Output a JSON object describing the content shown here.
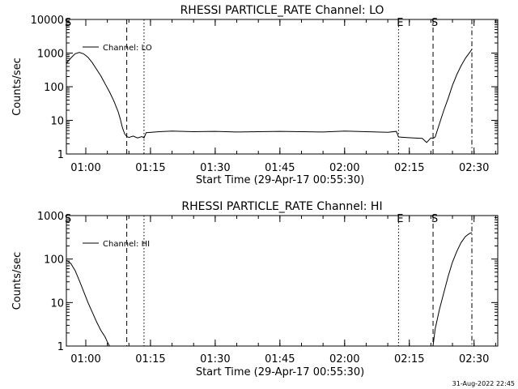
{
  "timestamp": "31-Aug-2022 22:45",
  "chart_data": [
    {
      "type": "line",
      "title": "RHESSI PARTICLE_RATE Channel: LO",
      "xlabel": "Start Time (29-Apr-17 00:55:30)",
      "ylabel": "Counts/sec",
      "yscale": "log",
      "ylim": [
        1,
        10000
      ],
      "y_ticks": [
        1,
        10,
        100,
        1000,
        10000
      ],
      "y_tick_labels": [
        "1",
        "10",
        "100",
        "1000",
        "10000"
      ],
      "xlim": [
        "00:55:30",
        "02:35:30"
      ],
      "x_ticks": [
        "01:00",
        "01:15",
        "01:30",
        "01:45",
        "02:00",
        "02:15",
        "02:30"
      ],
      "x_tick_labels": [
        "01:00",
        "01:15",
        "01:30",
        "01:45",
        "02:00",
        "02:15",
        "02:30"
      ],
      "legend": {
        "label": "Channel: LO",
        "placement": "top-left"
      },
      "markers": [
        {
          "time": "00:55:30",
          "label": "S",
          "style": "dashed"
        },
        {
          "time": "01:09:30",
          "label": "",
          "style": "dashed"
        },
        {
          "time": "01:13:30",
          "label": "",
          "style": "dotted"
        },
        {
          "time": "02:12:30",
          "label": "E",
          "style": "dotted"
        },
        {
          "time": "02:20:30",
          "label": "S",
          "style": "dashed"
        },
        {
          "time": "02:29:30",
          "label": "",
          "style": "dashdot"
        }
      ],
      "series": [
        {
          "x": [
            "00:55:30",
            "00:56:30",
            "00:57:30",
            "00:58:30",
            "00:59:30",
            "01:00:30",
            "01:01:30",
            "01:02:30",
            "01:03:30",
            "01:04:30",
            "01:05:30",
            "01:06:30",
            "01:07:30",
            "01:08:00",
            "01:08:30",
            "01:09:00",
            "01:09:30",
            "01:10:00",
            "01:11:00",
            "01:12:00",
            "01:13:00",
            "01:13:30",
            "01:14:00",
            "01:17:00",
            "01:20:00",
            "01:25:00",
            "01:30:00",
            "01:35:00",
            "01:40:00",
            "01:45:00",
            "01:50:00",
            "01:55:00",
            "02:00:00",
            "02:05:00",
            "02:10:00",
            "02:12:00",
            "02:12:30",
            "02:14:00",
            "02:16:00",
            "02:18:00",
            "02:19:00",
            "02:20:00",
            "02:20:30",
            "02:21:00",
            "02:22:00",
            "02:23:00",
            "02:24:00",
            "02:25:00",
            "02:26:00",
            "02:27:00",
            "02:28:00",
            "02:29:00",
            "02:29:30"
          ],
          "values": [
            500,
            700,
            950,
            1050,
            950,
            750,
            520,
            330,
            210,
            120,
            70,
            38,
            18,
            11,
            6,
            4,
            3.3,
            3.1,
            3.4,
            3.0,
            3.3,
            3.0,
            4.3,
            4.6,
            4.8,
            4.6,
            4.7,
            4.5,
            4.6,
            4.7,
            4.6,
            4.5,
            4.8,
            4.6,
            4.4,
            4.7,
            3.2,
            3.1,
            3.0,
            2.9,
            2.2,
            3.0,
            2.9,
            3.2,
            8,
            20,
            45,
            110,
            230,
            420,
            700,
            1050,
            1300
          ]
        }
      ]
    },
    {
      "type": "line",
      "title": "RHESSI PARTICLE_RATE Channel: HI",
      "xlabel": "Start Time (29-Apr-17 00:55:30)",
      "ylabel": "Counts/sec",
      "yscale": "log",
      "ylim": [
        1,
        1000
      ],
      "y_ticks": [
        1,
        10,
        100,
        1000
      ],
      "y_tick_labels": [
        "1",
        "10",
        "100",
        "1000"
      ],
      "xlim": [
        "00:55:30",
        "02:35:30"
      ],
      "x_ticks": [
        "01:00",
        "01:15",
        "01:30",
        "01:45",
        "02:00",
        "02:15",
        "02:30"
      ],
      "x_tick_labels": [
        "01:00",
        "01:15",
        "01:30",
        "01:45",
        "02:00",
        "02:15",
        "02:30"
      ],
      "legend": {
        "label": "Channel: HI",
        "placement": "top-left"
      },
      "markers": [
        {
          "time": "00:55:30",
          "label": "S",
          "style": "dashed"
        },
        {
          "time": "01:09:30",
          "label": "",
          "style": "dashed"
        },
        {
          "time": "01:13:30",
          "label": "",
          "style": "dotted"
        },
        {
          "time": "02:12:30",
          "label": "E",
          "style": "dotted"
        },
        {
          "time": "02:20:30",
          "label": "S",
          "style": "dashed"
        },
        {
          "time": "02:29:30",
          "label": "",
          "style": "dashdot"
        }
      ],
      "series": [
        {
          "x": [
            "00:55:30",
            "00:56:30",
            "00:57:30",
            "00:58:30",
            "00:59:30",
            "01:00:30",
            "01:01:30",
            "01:02:30",
            "01:03:30",
            "01:04:30",
            "01:05:00",
            "01:05:30"
          ],
          "values": [
            95,
            80,
            55,
            32,
            18,
            10,
            6,
            3.6,
            2.3,
            1.6,
            1.25,
            1.0
          ]
        },
        {
          "x": [
            "02:20:30",
            "02:21:00",
            "02:22:00",
            "02:23:00",
            "02:24:00",
            "02:25:00",
            "02:26:00",
            "02:27:00",
            "02:28:00",
            "02:29:00",
            "02:29:30"
          ],
          "values": [
            1.0,
            2.5,
            7,
            17,
            40,
            85,
            150,
            240,
            330,
            390,
            400
          ]
        }
      ]
    }
  ]
}
